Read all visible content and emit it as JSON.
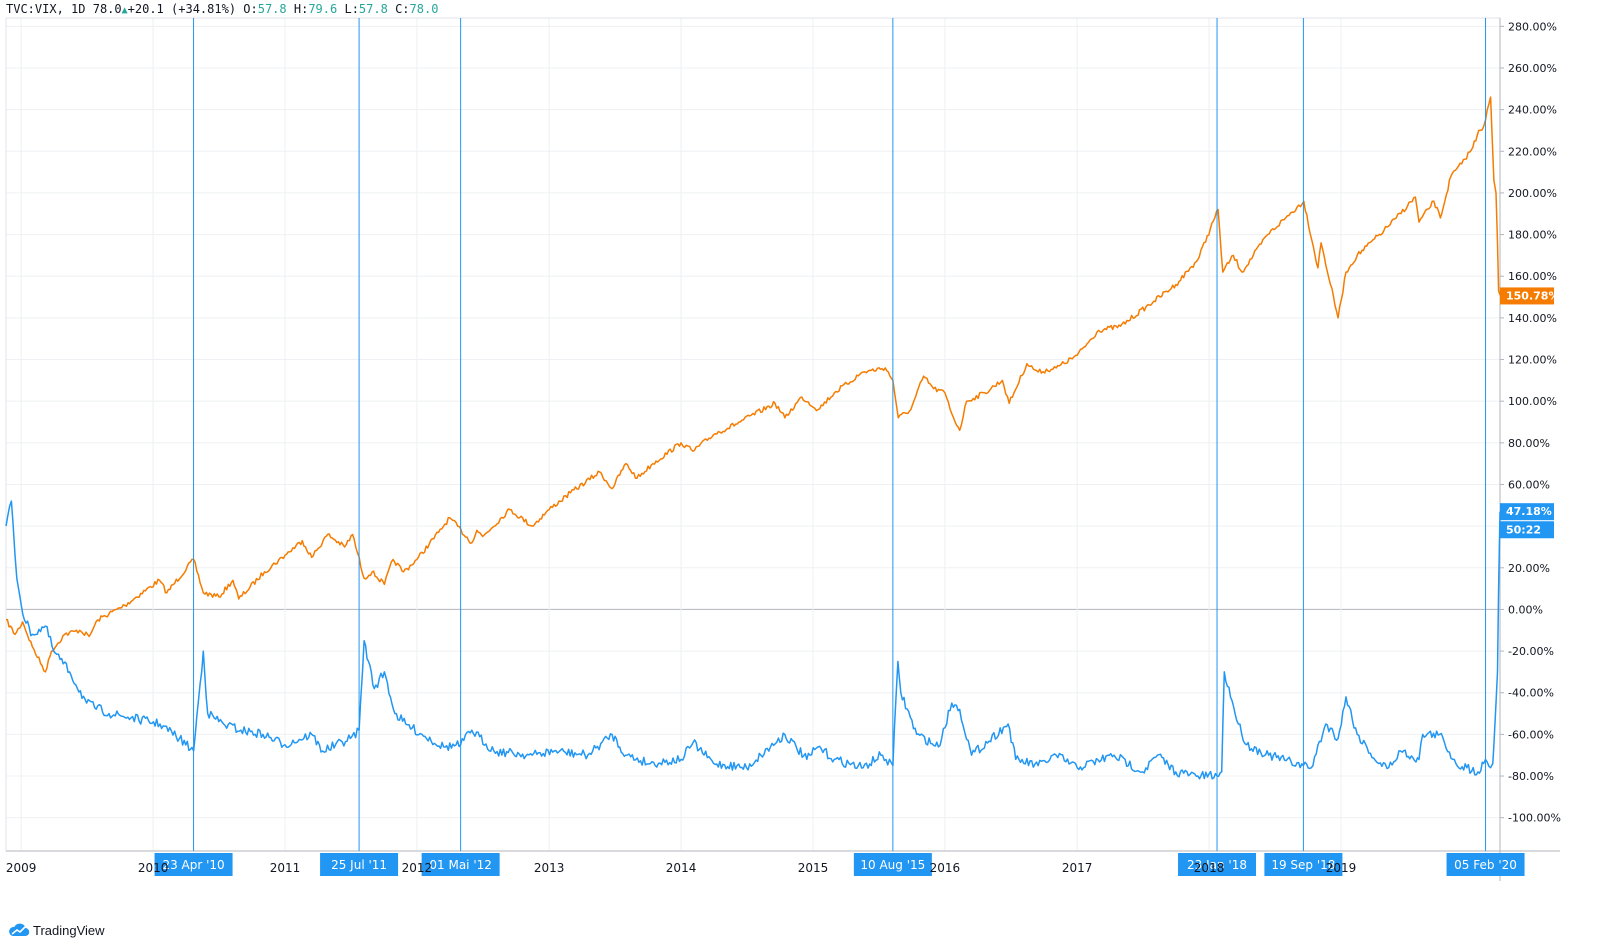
{
  "header": {
    "symbol": "TVC:VIX,",
    "interval": "1D",
    "last": "78.0",
    "change": "+20.1",
    "change_pct": "(+34.81%)",
    "open_label": "O:",
    "open": "57.8",
    "high_label": "H:",
    "high": "79.6",
    "low_label": "L:",
    "low": "57.8",
    "close_label": "C:",
    "close": "78.0"
  },
  "footer": {
    "brand": "TradingView",
    "icon": "tradingview-cloud-icon"
  },
  "colors": {
    "spx": "#f57c00",
    "vix": "#2196f3",
    "grid": "#eef0f3",
    "axis": "#b2b5be",
    "text": "#131722",
    "marker": "#2196f3"
  },
  "chart_data": {
    "type": "line",
    "title": "",
    "xlabel": "",
    "ylabel": "",
    "x_range": [
      "2008-11-20",
      "2020-03-16"
    ],
    "ylim": [
      -116,
      284
    ],
    "grid": true,
    "legend": "none",
    "y_ticks": [
      "280.00%",
      "260.00%",
      "240.00%",
      "220.00%",
      "200.00%",
      "180.00%",
      "160.00%",
      "140.00%",
      "120.00%",
      "100.00%",
      "80.00%",
      "60.00%",
      "40.00%",
      "20.00%",
      "0.00%",
      "-20.00%",
      "-40.00%",
      "-60.00%",
      "-80.00%",
      "-100.00%"
    ],
    "x_ticks": [
      {
        "label": "2009",
        "date": "2009-01-01"
      },
      {
        "label": "2010",
        "date": "2010-01-01"
      },
      {
        "label": "2011",
        "date": "2011-01-01"
      },
      {
        "label": "2012",
        "date": "2012-01-01"
      },
      {
        "label": "2013",
        "date": "2013-01-01"
      },
      {
        "label": "2014",
        "date": "2014-01-01"
      },
      {
        "label": "2015",
        "date": "2015-01-01"
      },
      {
        "label": "2016",
        "date": "2016-01-01"
      },
      {
        "label": "2017",
        "date": "2017-01-01"
      },
      {
        "label": "2018",
        "date": "2018-01-01"
      },
      {
        "label": "2019",
        "date": "2019-01-01"
      }
    ],
    "markers": [
      {
        "label": "23 Apr '10",
        "date": "2010-04-23"
      },
      {
        "label": "25 Jul '11",
        "date": "2011-07-25"
      },
      {
        "label": "01 Mai '12",
        "date": "2012-05-01"
      },
      {
        "label": "10 Aug '15",
        "date": "2015-08-10"
      },
      {
        "label": "23 Jan '18",
        "date": "2018-01-23"
      },
      {
        "label": "19 Sep '18",
        "date": "2018-09-19"
      },
      {
        "label": "05 Feb '20",
        "date": "2020-02-05"
      }
    ],
    "last_value_labels": [
      {
        "text": "150.78%",
        "value": 150.78,
        "series": "spx"
      },
      {
        "text": "47.18%",
        "value": 47.18,
        "series": "vix"
      },
      {
        "text": "50:22",
        "value": 38.5,
        "series": "vix"
      }
    ],
    "series": [
      {
        "key": "spx",
        "x": [
          "2008-11-20",
          "2008-12-15",
          "2009-01-05",
          "2009-02-01",
          "2009-03-09",
          "2009-03-26",
          "2009-05-01",
          "2009-06-12",
          "2009-07-08",
          "2009-08-01",
          "2009-10-15",
          "2010-01-19",
          "2010-02-08",
          "2010-04-23",
          "2010-05-20",
          "2010-07-02",
          "2010-08-10",
          "2010-08-26",
          "2010-11-05",
          "2011-01-01",
          "2011-02-18",
          "2011-03-16",
          "2011-04-29",
          "2011-06-15",
          "2011-07-07",
          "2011-08-08",
          "2011-08-30",
          "2011-10-03",
          "2011-10-27",
          "2011-11-25",
          "2012-01-01",
          "2012-03-01",
          "2012-04-01",
          "2012-06-01",
          "2012-06-15",
          "2012-07-01",
          "2012-09-14",
          "2012-11-15",
          "2013-01-01",
          "2013-03-01",
          "2013-05-21",
          "2013-06-24",
          "2013-08-01",
          "2013-09-01",
          "2013-10-15",
          "2014-01-01",
          "2014-02-03",
          "2014-04-01",
          "2014-06-01",
          "2014-09-18",
          "2014-10-15",
          "2014-12-01",
          "2015-01-15",
          "2015-03-01",
          "2015-05-20",
          "2015-07-20",
          "2015-08-10",
          "2015-08-25",
          "2015-09-29",
          "2015-11-03",
          "2015-12-01",
          "2016-01-01",
          "2016-01-20",
          "2016-02-11",
          "2016-03-01",
          "2016-04-20",
          "2016-06-08",
          "2016-06-27",
          "2016-08-15",
          "2016-09-15",
          "2016-11-04",
          "2017-01-01",
          "2017-03-01",
          "2017-05-01",
          "2017-08-01",
          "2017-10-01",
          "2017-12-01",
          "2018-01-26",
          "2018-02-08",
          "2018-03-09",
          "2018-04-02",
          "2018-06-12",
          "2018-08-01",
          "2018-09-20",
          "2018-10-29",
          "2018-11-07",
          "2018-12-24",
          "2019-01-15",
          "2019-02-15",
          "2019-04-30",
          "2019-06-03",
          "2019-07-26",
          "2019-08-05",
          "2019-09-15",
          "2019-10-03",
          "2019-11-01",
          "2019-12-01",
          "2020-01-01",
          "2020-01-17",
          "2020-01-31",
          "2020-02-19",
          "2020-02-28",
          "2020-03-05",
          "2020-03-09",
          "2020-03-12",
          "2020-03-16"
        ],
        "values": [
          -5,
          -12,
          -6,
          -18,
          -30,
          -20,
          -12,
          -10,
          -13,
          -5,
          2,
          14,
          8,
          24,
          8,
          6,
          14,
          5,
          18,
          26,
          33,
          25,
          36,
          30,
          36,
          15,
          18,
          12,
          24,
          18,
          24,
          37,
          44,
          32,
          38,
          35,
          48,
          40,
          48,
          56,
          66,
          58,
          70,
          63,
          70,
          80,
          76,
          84,
          89,
          99,
          92,
          102,
          96,
          104,
          114,
          116,
          110,
          92,
          96,
          112,
          106,
          104,
          94,
          86,
          100,
          104,
          110,
          99,
          118,
          114,
          116,
          122,
          134,
          136,
          148,
          156,
          168,
          192,
          162,
          170,
          162,
          180,
          188,
          196,
          164,
          176,
          140,
          162,
          170,
          182,
          188,
          198,
          186,
          196,
          188,
          208,
          214,
          222,
          230,
          232,
          246,
          206,
          200,
          176,
          153,
          151
        ]
      },
      {
        "key": "vix",
        "x": [
          "2008-11-20",
          "2008-12-05",
          "2008-12-20",
          "2009-01-10",
          "2009-02-01",
          "2009-03-09",
          "2009-04-01",
          "2009-05-15",
          "2009-07-01",
          "2009-09-01",
          "2009-11-01",
          "2010-01-20",
          "2010-03-15",
          "2010-04-23",
          "2010-05-20",
          "2010-06-01",
          "2010-07-15",
          "2010-09-01",
          "2010-11-01",
          "2011-01-01",
          "2011-03-16",
          "2011-04-15",
          "2011-07-01",
          "2011-07-25",
          "2011-08-08",
          "2011-08-20",
          "2011-09-05",
          "2011-10-03",
          "2011-11-01",
          "2011-12-01",
          "2012-01-15",
          "2012-03-15",
          "2012-05-01",
          "2012-06-01",
          "2012-08-01",
          "2012-11-15",
          "2013-01-15",
          "2013-04-18",
          "2013-06-24",
          "2013-08-01",
          "2013-10-08",
          "2014-01-01",
          "2014-02-03",
          "2014-04-01",
          "2014-07-01",
          "2014-10-15",
          "2014-12-15",
          "2015-01-15",
          "2015-03-01",
          "2015-05-20",
          "2015-07-08",
          "2015-08-10",
          "2015-08-24",
          "2015-09-01",
          "2015-10-15",
          "2015-12-14",
          "2016-01-20",
          "2016-02-11",
          "2016-03-15",
          "2016-06-24",
          "2016-07-15",
          "2016-09-15",
          "2016-11-04",
          "2017-01-01",
          "2017-04-13",
          "2017-07-01",
          "2017-08-11",
          "2017-10-01",
          "2017-12-01",
          "2018-01-23",
          "2018-02-05",
          "2018-02-12",
          "2018-03-23",
          "2018-04-15",
          "2018-06-15",
          "2018-09-19",
          "2018-10-11",
          "2018-11-20",
          "2018-12-24",
          "2019-01-15",
          "2019-02-15",
          "2019-04-15",
          "2019-05-13",
          "2019-06-15",
          "2019-08-05",
          "2019-08-15",
          "2019-10-01",
          "2019-11-15",
          "2019-12-15",
          "2020-01-15",
          "2020-01-31",
          "2020-02-05",
          "2020-02-19",
          "2020-02-25",
          "2020-02-28",
          "2020-03-05",
          "2020-03-09",
          "2020-03-12",
          "2020-03-16"
        ],
        "values": [
          40,
          52,
          15,
          -5,
          -12,
          -8,
          -20,
          -30,
          -45,
          -50,
          -52,
          -55,
          -62,
          -68,
          -20,
          -50,
          -55,
          -58,
          -60,
          -65,
          -60,
          -68,
          -62,
          -58,
          -15,
          -25,
          -38,
          -30,
          -50,
          -55,
          -60,
          -66,
          -65,
          -58,
          -68,
          -70,
          -68,
          -70,
          -60,
          -70,
          -74,
          -72,
          -64,
          -74,
          -76,
          -60,
          -72,
          -66,
          -72,
          -76,
          -70,
          -75,
          -25,
          -40,
          -60,
          -66,
          -45,
          -48,
          -70,
          -55,
          -72,
          -75,
          -70,
          -76,
          -70,
          -78,
          -70,
          -78,
          -80,
          -80,
          -78,
          -30,
          -55,
          -65,
          -70,
          -75,
          -76,
          -55,
          -62,
          -42,
          -60,
          -74,
          -76,
          -68,
          -72,
          -60,
          -60,
          -74,
          -76,
          -78,
          -74,
          -72,
          -76,
          -74,
          -65,
          -45,
          -30,
          10,
          47
        ]
      }
    ]
  }
}
